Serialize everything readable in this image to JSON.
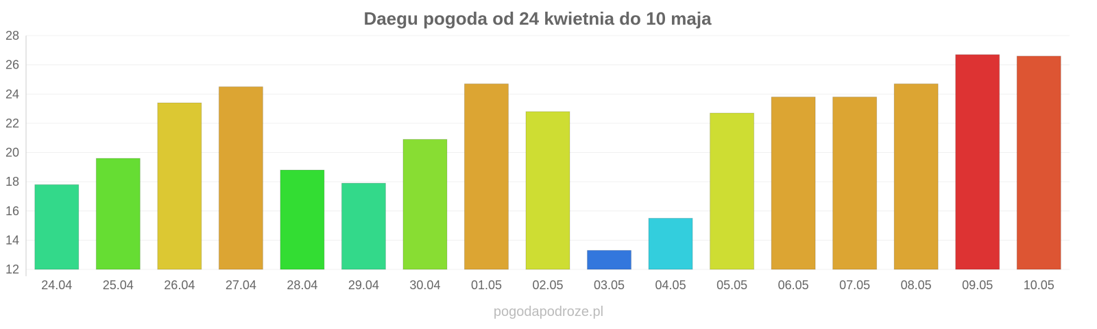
{
  "chart_data": {
    "type": "bar",
    "title": "Daegu pogoda od 24 kwietnia do 10 maja",
    "xlabel": "",
    "ylabel": "",
    "ylim": [
      12,
      28
    ],
    "yticks": [
      12,
      14,
      16,
      18,
      20,
      22,
      24,
      26,
      28
    ],
    "grid": true,
    "categories": [
      "24.04",
      "25.04",
      "26.04",
      "27.04",
      "28.04",
      "29.04",
      "30.04",
      "01.05",
      "02.05",
      "03.05",
      "04.05",
      "05.05",
      "06.05",
      "07.05",
      "08.05",
      "09.05",
      "10.05"
    ],
    "values": [
      17.8,
      19.6,
      23.4,
      24.5,
      18.8,
      17.9,
      20.9,
      24.7,
      22.8,
      13.3,
      15.5,
      22.7,
      23.8,
      23.8,
      24.7,
      26.7,
      26.6
    ],
    "colors": [
      "#33d98a",
      "#66dd33",
      "#dcc833",
      "#dca533",
      "#33dd33",
      "#33d98a",
      "#88dd33",
      "#dca533",
      "#cedd33",
      "#3377dd",
      "#33cedd",
      "#cedd33",
      "#dca533",
      "#dca533",
      "#dca533",
      "#dd3333",
      "#dd5533"
    ],
    "source": "pogodapodroze.pl"
  }
}
